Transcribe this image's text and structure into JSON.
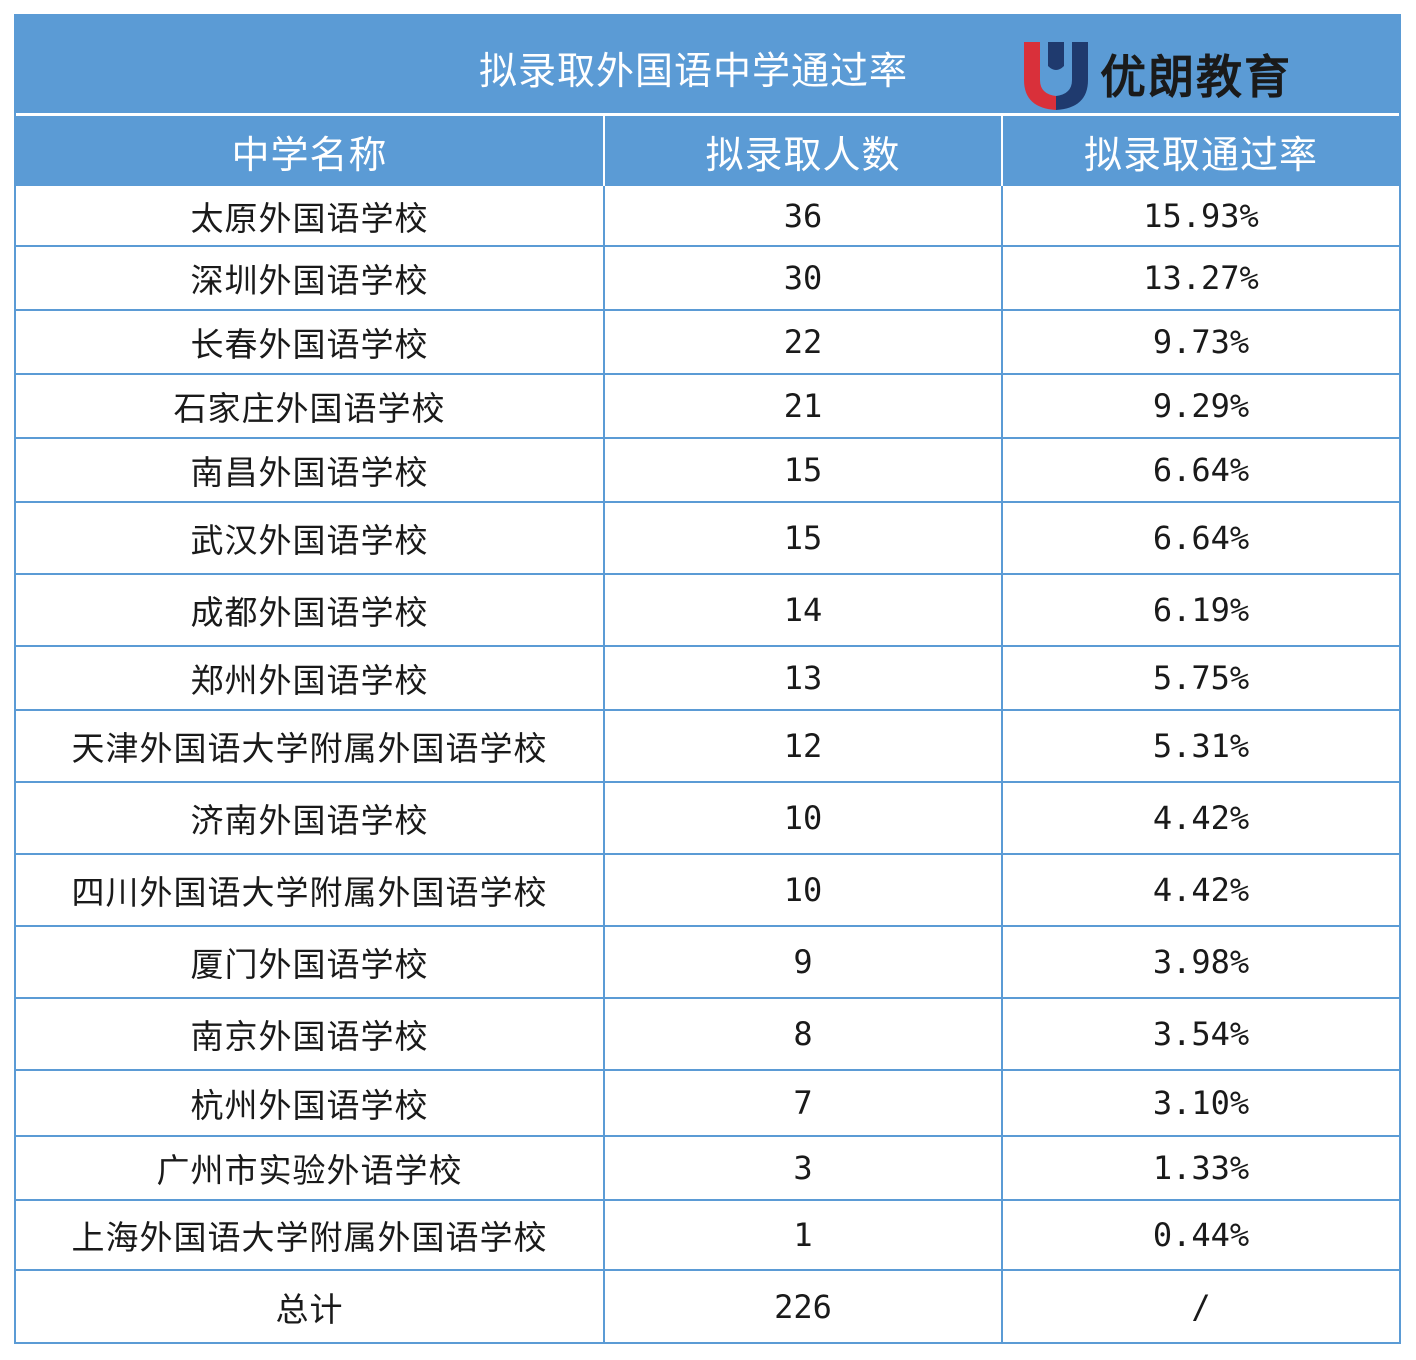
{
  "title": "拟录取外国语中学通过率",
  "logo": {
    "text": "优朗教育",
    "colors": {
      "red": "#d9303a",
      "navy": "#1f3a6e"
    }
  },
  "columns": [
    "中学名称",
    "拟录取人数",
    "拟录取通过率"
  ],
  "rows": [
    {
      "name": "太原外国语学校",
      "count": "36",
      "rate": "15.93%"
    },
    {
      "name": "深圳外国语学校",
      "count": "30",
      "rate": "13.27%"
    },
    {
      "name": "长春外国语学校",
      "count": "22",
      "rate": "9.73%"
    },
    {
      "name": "石家庄外国语学校",
      "count": "21",
      "rate": "9.29%"
    },
    {
      "name": "南昌外国语学校",
      "count": "15",
      "rate": "6.64%"
    },
    {
      "name": "武汉外国语学校",
      "count": "15",
      "rate": "6.64%"
    },
    {
      "name": "成都外国语学校",
      "count": "14",
      "rate": "6.19%"
    },
    {
      "name": "郑州外国语学校",
      "count": "13",
      "rate": "5.75%"
    },
    {
      "name": "天津外国语大学附属外国语学校",
      "count": "12",
      "rate": "5.31%"
    },
    {
      "name": "济南外国语学校",
      "count": "10",
      "rate": "4.42%"
    },
    {
      "name": "四川外国语大学附属外国语学校",
      "count": "10",
      "rate": "4.42%"
    },
    {
      "name": "厦门外国语学校",
      "count": "9",
      "rate": "3.98%"
    },
    {
      "name": "南京外国语学校",
      "count": "8",
      "rate": "3.54%"
    },
    {
      "name": "杭州外国语学校",
      "count": "7",
      "rate": "3.10%"
    },
    {
      "name": "广州市实验外语学校",
      "count": "3",
      "rate": "1.33%"
    },
    {
      "name": "上海外国语大学附属外国语学校",
      "count": "1",
      "rate": "0.44%"
    }
  ],
  "total": {
    "name": "总计",
    "count": "226",
    "rate": "/"
  },
  "colors": {
    "header_bg": "#5b9bd5",
    "border": "#5b9bd5"
  }
}
